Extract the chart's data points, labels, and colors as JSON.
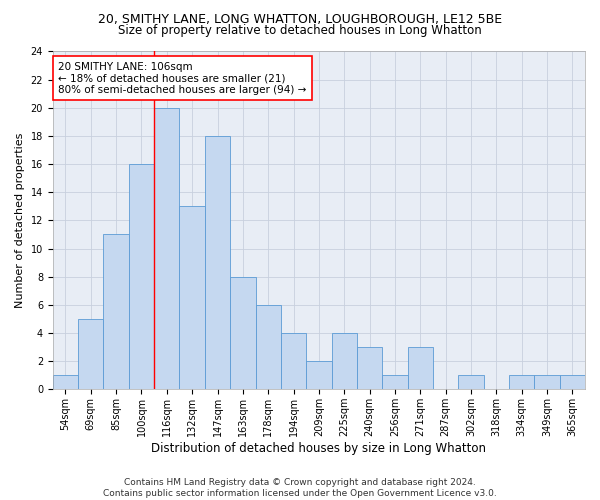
{
  "title": "20, SMITHY LANE, LONG WHATTON, LOUGHBOROUGH, LE12 5BE",
  "subtitle": "Size of property relative to detached houses in Long Whatton",
  "xlabel": "Distribution of detached houses by size in Long Whatton",
  "ylabel": "Number of detached properties",
  "categories": [
    "54sqm",
    "69sqm",
    "85sqm",
    "100sqm",
    "116sqm",
    "132sqm",
    "147sqm",
    "163sqm",
    "178sqm",
    "194sqm",
    "209sqm",
    "225sqm",
    "240sqm",
    "256sqm",
    "271sqm",
    "287sqm",
    "302sqm",
    "318sqm",
    "334sqm",
    "349sqm",
    "365sqm"
  ],
  "values": [
    1,
    5,
    11,
    16,
    20,
    13,
    18,
    8,
    6,
    4,
    2,
    4,
    3,
    1,
    3,
    0,
    1,
    0,
    1,
    1,
    1
  ],
  "bar_color": "#c5d8f0",
  "bar_edge_color": "#5b9bd5",
  "vline_x_index": 3.5,
  "vline_color": "red",
  "annotation_text": "20 SMITHY LANE: 106sqm\n← 18% of detached houses are smaller (21)\n80% of semi-detached houses are larger (94) →",
  "annotation_box_color": "white",
  "annotation_box_edge_color": "red",
  "ylim": [
    0,
    24
  ],
  "yticks": [
    0,
    2,
    4,
    6,
    8,
    10,
    12,
    14,
    16,
    18,
    20,
    22,
    24
  ],
  "grid_color": "#c8d0de",
  "background_color": "#e8edf5",
  "footnote": "Contains HM Land Registry data © Crown copyright and database right 2024.\nContains public sector information licensed under the Open Government Licence v3.0.",
  "title_fontsize": 9,
  "subtitle_fontsize": 8.5,
  "xlabel_fontsize": 8.5,
  "ylabel_fontsize": 8,
  "tick_fontsize": 7,
  "annotation_fontsize": 7.5,
  "footnote_fontsize": 6.5
}
